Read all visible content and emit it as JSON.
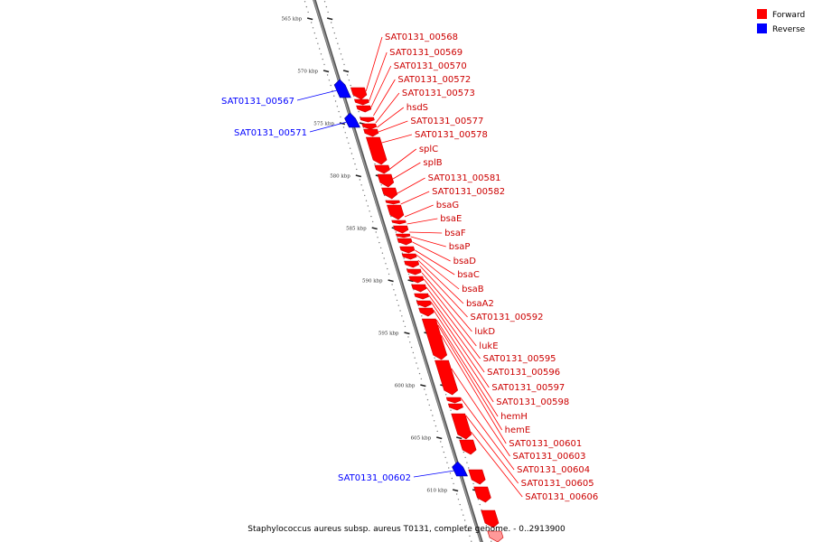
{
  "legend": [
    {
      "label": "Forward",
      "color": "#ff0000"
    },
    {
      "label": "Reverse",
      "color": "#0000ff"
    }
  ],
  "colors": {
    "forward": "#ff0000",
    "forward_dark": "#cc0000",
    "reverse": "#0000ff",
    "backbone": "#999999",
    "backbone_edge": "#555555"
  },
  "footer": "Staphylococcus aureus subsp. aureus T0131, complete genome. - 0..2913900",
  "scale_ticks": [
    "565 kbp",
    "570 kbp",
    "575 kbp",
    "580 kbp",
    "585 kbp",
    "590 kbp",
    "595 kbp",
    "600 kbp",
    "605 kbp",
    "610 kbp"
  ],
  "forward_genes": [
    "SAT0131_00568",
    "SAT0131_00569",
    "SAT0131_00570",
    "SAT0131_00572",
    "SAT0131_00573",
    "hsdS",
    "SAT0131_00577",
    "SAT0131_00578",
    "splC",
    "splB",
    "SAT0131_00581",
    "SAT0131_00582",
    "bsaG",
    "bsaE",
    "bsaF",
    "bsaP",
    "bsaD",
    "bsaC",
    "bsaB",
    "bsaA2",
    "SAT0131_00592",
    "lukD",
    "lukE",
    "SAT0131_00595",
    "SAT0131_00596",
    "SAT0131_00597",
    "SAT0131_00598",
    "hemH",
    "hemE",
    "SAT0131_00601",
    "SAT0131_00603",
    "SAT0131_00604",
    "SAT0131_00605",
    "SAT0131_00606"
  ],
  "reverse_genes": [
    "SAT0131_00567",
    "SAT0131_00571",
    "SAT0131_00602"
  ]
}
